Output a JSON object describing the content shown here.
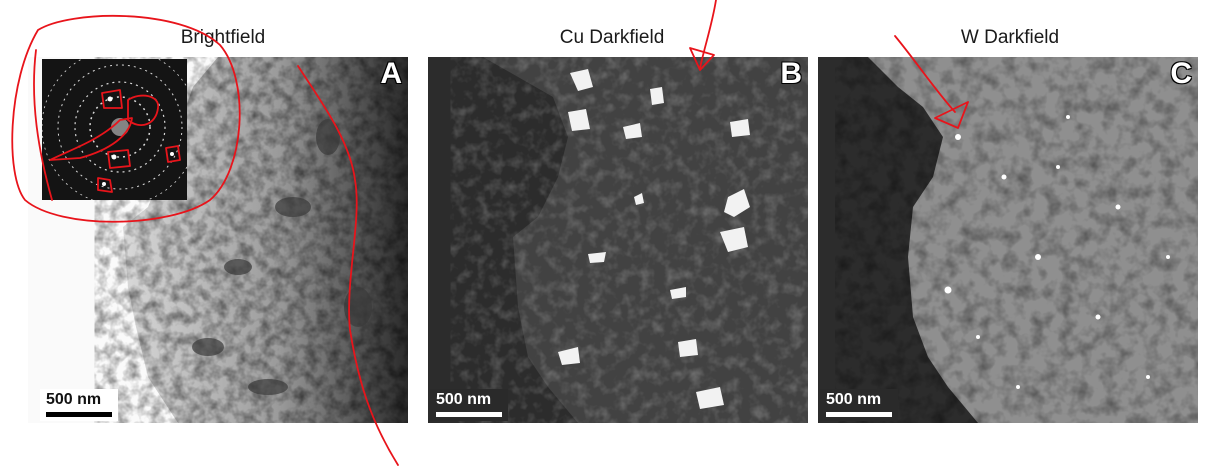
{
  "panels": [
    {
      "title": "Brightfield",
      "letter": "A",
      "scale": "500 nm"
    },
    {
      "title": "Cu Darkfield",
      "letter": "B",
      "scale": "500 nm"
    },
    {
      "title": "W Darkfield",
      "letter": "C",
      "scale": "500 nm"
    }
  ],
  "colors": {
    "annotation": "#e8141b",
    "darkfield_bg": "#2b2b2b",
    "brightfield_bg": "#e9e9e9"
  }
}
